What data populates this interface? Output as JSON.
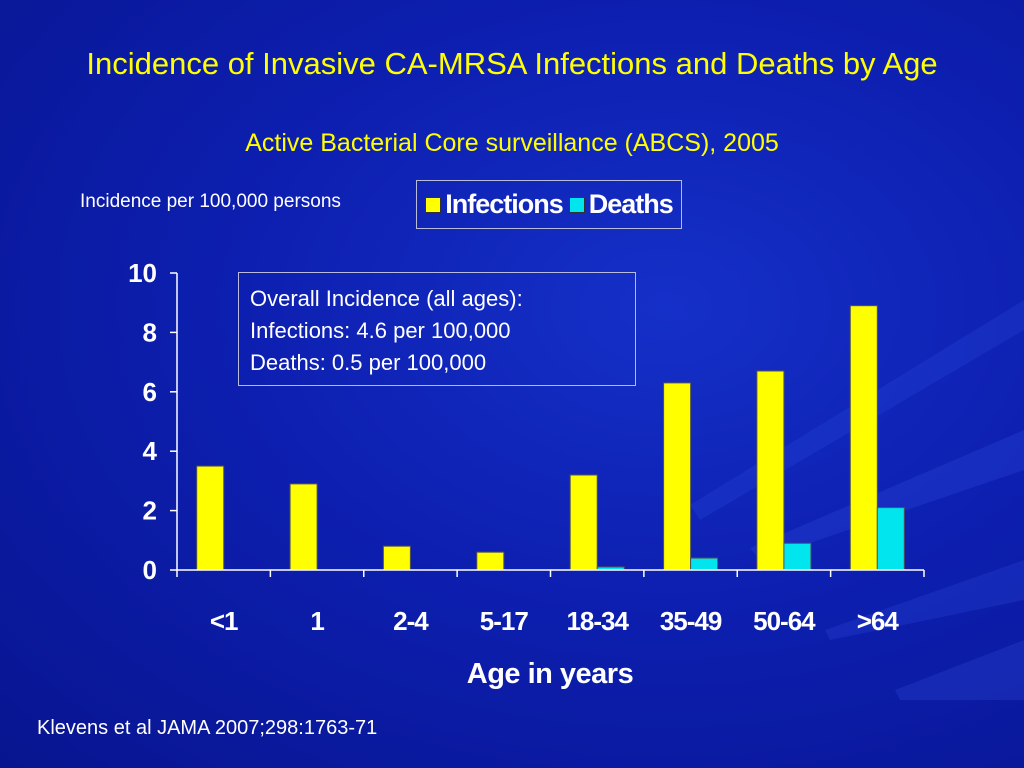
{
  "slide": {
    "title": "Incidence of Invasive CA-MRSA Infections and Deaths by Age",
    "subtitle": "Active Bacterial Core surveillance (ABCS), 2005",
    "citation": "Klevens et al JAMA 2007;298:1763-71"
  },
  "annotation": {
    "line1": "Overall Incidence (all ages):",
    "line2": "Infections: 4.6 per 100,000",
    "line3": "Deaths: 0.5 per 100,000"
  },
  "colors": {
    "infections": "#ffff00",
    "deaths": "#00e5ee",
    "background": "#0a1a9e",
    "title": "#ffff00",
    "text": "#ffffff"
  },
  "chart_data": {
    "type": "bar",
    "categories": [
      "<1",
      "1",
      "2-4",
      "5-17",
      "18-34",
      "35-49",
      "50-64",
      ">64"
    ],
    "series": [
      {
        "name": "Infections",
        "values": [
          3.5,
          2.9,
          0.8,
          0.6,
          3.2,
          6.3,
          6.7,
          8.9
        ]
      },
      {
        "name": "Deaths",
        "values": [
          0,
          0,
          0,
          0,
          0.1,
          0.4,
          0.9,
          2.1
        ]
      }
    ],
    "title": "Incidence of Invasive CA-MRSA Infections and Deaths by Age",
    "xlabel": "Age in years",
    "ylabel": "Incidence per 100,000 persons",
    "ylim": [
      0,
      10
    ],
    "yticks": [
      0,
      2,
      4,
      6,
      8,
      10
    ],
    "grid": false,
    "legend": "top-center"
  }
}
